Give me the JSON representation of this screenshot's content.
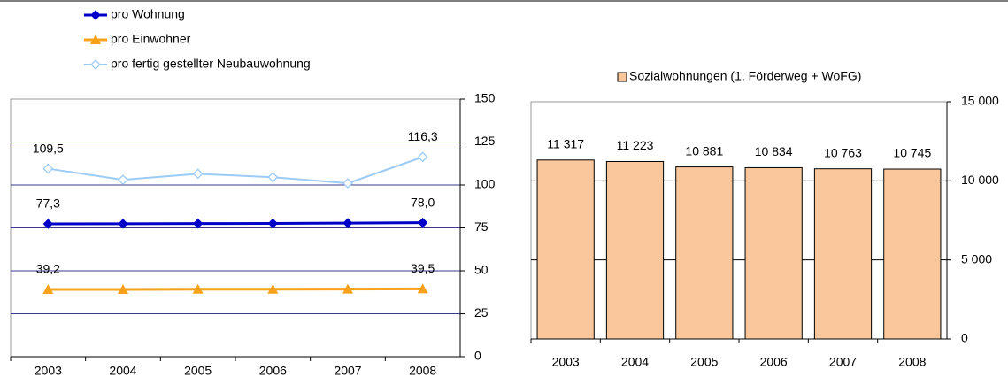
{
  "chart_data": [
    {
      "type": "line",
      "categories": [
        "2003",
        "2004",
        "2005",
        "2006",
        "2007",
        "2008"
      ],
      "series": [
        {
          "name": "pro Wohnung",
          "color": "#0000c8",
          "marker": "diamond",
          "values": [
            77.3,
            77.4,
            77.5,
            77.6,
            77.8,
            78.0
          ],
          "value_labels": [
            "77,3",
            null,
            null,
            null,
            null,
            "78,0"
          ]
        },
        {
          "name": "pro Einwohner",
          "color": "#f8a21c",
          "marker": "triangle",
          "values": [
            39.2,
            39.2,
            39.3,
            39.3,
            39.4,
            39.5
          ],
          "value_labels": [
            "39,2",
            null,
            null,
            null,
            null,
            "39,5"
          ]
        },
        {
          "name": "pro fertig gestellter Neubauwohnung",
          "color": "#9ccbf6",
          "marker": "diamond-open",
          "values": [
            109.5,
            103,
            106.5,
            104.5,
            101,
            116.3
          ],
          "value_labels": [
            "109,5",
            null,
            null,
            null,
            null,
            "116,3"
          ]
        }
      ],
      "ylim": [
        0,
        150
      ],
      "yticks": [
        0,
        25,
        50,
        75,
        100,
        125,
        150
      ],
      "grid": true,
      "y_axis_side": "right"
    },
    {
      "type": "bar",
      "categories": [
        "2003",
        "2004",
        "2005",
        "2006",
        "2007",
        "2008"
      ],
      "series": [
        {
          "name": "Sozialwohnungen (1. Förderweg + WoFG)",
          "color": "#fac79c",
          "values": [
            11317,
            11223,
            10881,
            10834,
            10763,
            10745
          ],
          "value_labels": [
            "11 317",
            "11 223",
            "10 881",
            "10 834",
            "10 763",
            "10 745"
          ]
        }
      ],
      "ylim": [
        0,
        15000
      ],
      "yticks": [
        0,
        {
          "value": 5000,
          "label": "5 000"
        },
        {
          "value": 10000,
          "label": "10 000"
        },
        {
          "value": 15000,
          "label": "15 000"
        }
      ],
      "grid": true,
      "y_axis_side": "right"
    }
  ]
}
